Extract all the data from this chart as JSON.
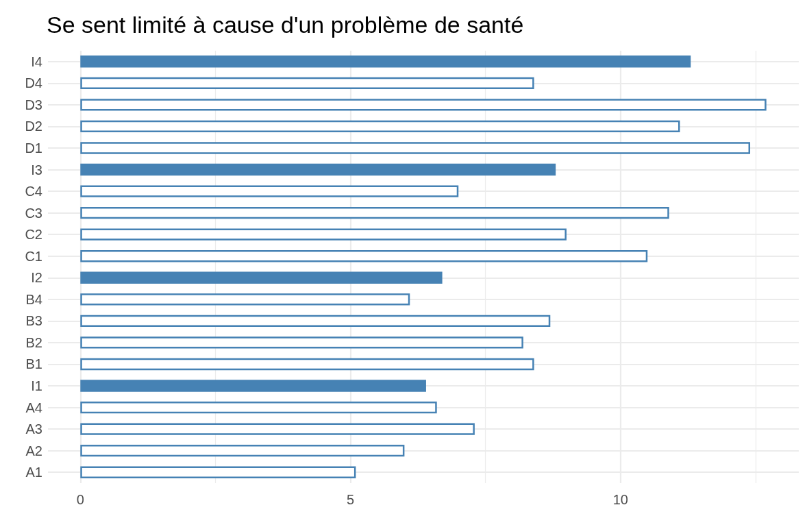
{
  "chart_data": {
    "type": "bar",
    "orientation": "horizontal",
    "title": "Se sent limité à cause d'un problème de santé",
    "categories": [
      "I4",
      "D4",
      "D3",
      "D2",
      "D1",
      "I3",
      "C4",
      "C3",
      "C2",
      "C1",
      "I2",
      "B4",
      "B3",
      "B2",
      "B1",
      "I1",
      "A4",
      "A3",
      "A2",
      "A1"
    ],
    "series": [
      {
        "color": "#4682b4",
        "values": [
          11.3,
          8.4,
          12.7,
          11.1,
          12.4,
          8.8,
          7.0,
          10.9,
          9.0,
          10.5,
          6.7,
          6.1,
          8.7,
          8.2,
          8.4,
          6.4,
          6.6,
          7.3,
          6.0,
          5.1
        ],
        "colors": [
          "#4682b4",
          "#ffffff",
          "#ffffff",
          "#ffffff",
          "#ffffff",
          "#4682b4",
          "#ffffff",
          "#ffffff",
          "#ffffff",
          "#ffffff",
          "#4682b4",
          "#ffffff",
          "#ffffff",
          "#ffffff",
          "#ffffff",
          "#4682b4",
          "#ffffff",
          "#ffffff",
          "#ffffff",
          "#ffffff"
        ]
      }
    ],
    "xlim": [
      -0.6,
      13.3
    ],
    "xticks": [
      0,
      {
        "value": 2.5,
        "label": null
      },
      5,
      {
        "value": 7.5,
        "label": null
      },
      10,
      {
        "value": 12.5,
        "label": null
      }
    ],
    "grid": true
  }
}
